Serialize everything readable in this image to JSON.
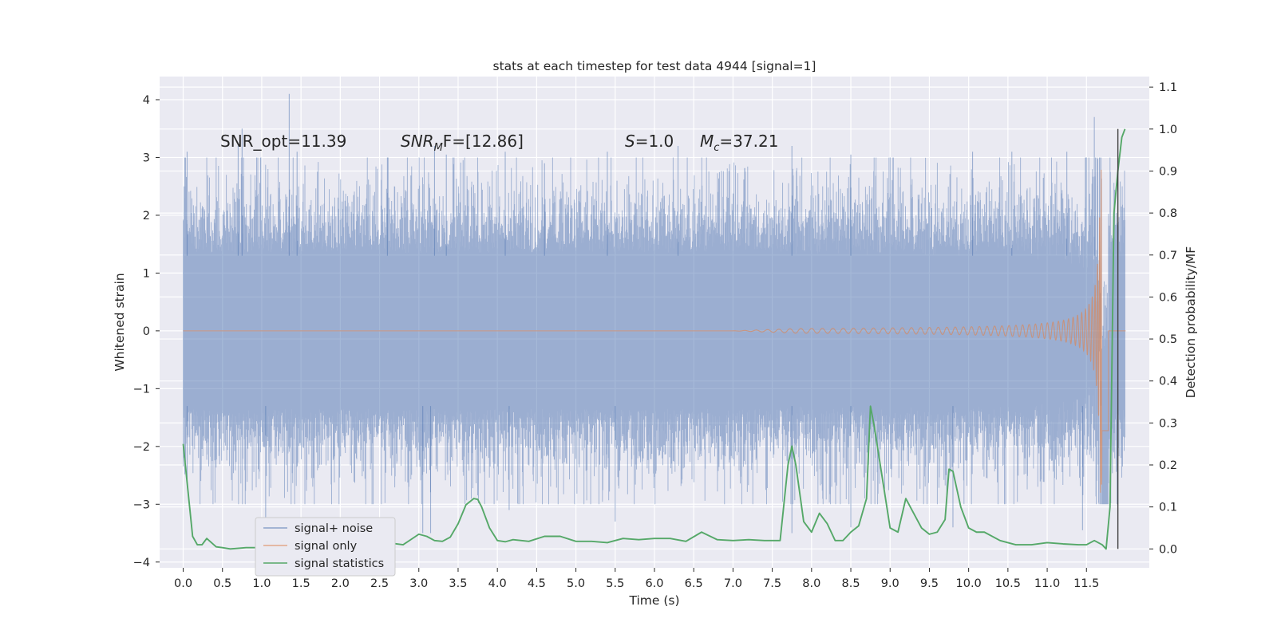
{
  "chart_data": {
    "type": "line",
    "title": "stats at each timestep for test data 4944 [signal=1]",
    "xlabel": "Time (s)",
    "ylabel": "Whitened strain",
    "y2label": "Detection probability/MF",
    "xlim": [
      -0.3,
      12.3
    ],
    "ylim": [
      -4.1,
      4.4
    ],
    "y2lim": [
      -0.045,
      1.125
    ],
    "x_ticks": [
      0.0,
      0.5,
      1.0,
      1.5,
      2.0,
      2.5,
      3.0,
      3.5,
      4.0,
      4.5,
      5.0,
      5.5,
      6.0,
      6.5,
      7.0,
      7.5,
      8.0,
      8.5,
      9.0,
      9.5,
      10.0,
      10.5,
      11.0,
      11.5
    ],
    "x_tick_labels": [
      "0.0",
      "0.5",
      "1.0",
      "1.5",
      "2.0",
      "2.5",
      "3.0",
      "3.5",
      "4.0",
      "4.5",
      "5.0",
      "5.5",
      "6.0",
      "6.5",
      "7.0",
      "7.5",
      "8.0",
      "8.5",
      "9.0",
      "9.5",
      "10.0",
      "10.5",
      "11.0",
      "11.5"
    ],
    "y_ticks": [
      4,
      3,
      2,
      1,
      0,
      -1,
      -2,
      -3,
      -4
    ],
    "y_tick_labels": [
      "4",
      "3",
      "2",
      "1",
      "0",
      "−1",
      "−2",
      "−3",
      "−4"
    ],
    "y2_ticks": [
      1.1,
      1.0,
      0.9,
      0.8,
      0.7,
      0.6,
      0.5,
      0.4,
      0.3,
      0.2,
      0.1,
      0.0
    ],
    "y2_tick_labels": [
      "1.1",
      "1.0",
      "0.9",
      "0.8",
      "0.7",
      "0.6",
      "0.5",
      "0.4",
      "0.3",
      "0.2",
      "0.1",
      "0.0"
    ],
    "grid": true,
    "legend_placement": "lower-left",
    "colors": {
      "background": "#eaeaf2",
      "grid": "#ffffff",
      "noise": "#4c72b0",
      "signal": "#dd8452",
      "stats": "#55a868",
      "marker": "#404040"
    },
    "series": [
      {
        "name": "signal+ noise",
        "axis": "left",
        "kind": "whitened strain noise band",
        "x_range": [
          0.0,
          11.99
        ],
        "typical_range": [
          -1.4,
          1.4
        ],
        "peaks_upper": [
          [
            0.05,
            3.1
          ],
          [
            0.7,
            3.2
          ],
          [
            0.75,
            3.5
          ],
          [
            1.35,
            4.1
          ],
          [
            1.45,
            3.1
          ],
          [
            2.6,
            3.0
          ],
          [
            3.2,
            3.2
          ],
          [
            3.35,
            3.05
          ],
          [
            4.1,
            3.1
          ],
          [
            4.6,
            2.9
          ],
          [
            5.4,
            3.1
          ],
          [
            6.3,
            3.2
          ],
          [
            7.75,
            3.2
          ],
          [
            8.5,
            3.05
          ],
          [
            10.05,
            3.1
          ],
          [
            10.55,
            3.1
          ],
          [
            11.25,
            3.1
          ],
          [
            11.6,
            3.7
          ]
        ],
        "peaks_lower": [
          [
            0.05,
            -2.6
          ],
          [
            1.05,
            -3.3
          ],
          [
            3.05,
            -3.5
          ],
          [
            3.15,
            -3.5
          ],
          [
            4.15,
            -3.1
          ],
          [
            5.5,
            -3.3
          ],
          [
            7.75,
            -3.5
          ],
          [
            8.5,
            -3.4
          ],
          [
            9.8,
            -3.4
          ],
          [
            11.45,
            -3.45
          ]
        ]
      },
      {
        "name": "signal only",
        "axis": "left",
        "kind": "chirp",
        "onset": 7.0,
        "merger_time": 11.7,
        "peak_amplitude": 2.8,
        "min_amplitude": -2.6
      },
      {
        "name": "signal statistics",
        "axis": "right",
        "x": [
          0.0,
          0.06,
          0.12,
          0.18,
          0.24,
          0.3,
          0.36,
          0.42,
          0.5,
          0.6,
          0.8,
          1.0,
          1.2,
          1.4,
          1.5,
          1.6,
          1.8,
          2.0,
          2.2,
          2.4,
          2.6,
          2.8,
          3.0,
          3.1,
          3.2,
          3.3,
          3.4,
          3.5,
          3.6,
          3.7,
          3.75,
          3.8,
          3.9,
          4.0,
          4.1,
          4.2,
          4.4,
          4.6,
          4.8,
          5.0,
          5.2,
          5.4,
          5.6,
          5.8,
          6.0,
          6.2,
          6.4,
          6.6,
          6.8,
          7.0,
          7.2,
          7.4,
          7.6,
          7.7,
          7.75,
          7.8,
          7.9,
          8.0,
          8.1,
          8.2,
          8.3,
          8.4,
          8.5,
          8.6,
          8.7,
          8.75,
          8.8,
          8.9,
          9.0,
          9.1,
          9.2,
          9.3,
          9.4,
          9.5,
          9.6,
          9.7,
          9.75,
          9.8,
          9.9,
          10.0,
          10.1,
          10.2,
          10.4,
          10.6,
          10.8,
          11.0,
          11.2,
          11.4,
          11.5,
          11.6,
          11.7,
          11.75,
          11.8,
          11.85,
          11.9,
          11.95,
          11.99
        ],
        "values": [
          0.25,
          0.14,
          0.03,
          0.01,
          0.01,
          0.025,
          0.015,
          0.005,
          0.003,
          0.0,
          0.003,
          0.003,
          0.005,
          0.003,
          0.01,
          0.005,
          0.01,
          0.007,
          0.01,
          0.01,
          0.015,
          0.01,
          0.035,
          0.03,
          0.02,
          0.018,
          0.028,
          0.06,
          0.105,
          0.12,
          0.118,
          0.1,
          0.05,
          0.02,
          0.017,
          0.022,
          0.018,
          0.03,
          0.03,
          0.018,
          0.018,
          0.015,
          0.025,
          0.022,
          0.025,
          0.025,
          0.018,
          0.04,
          0.022,
          0.02,
          0.022,
          0.02,
          0.02,
          0.2,
          0.245,
          0.2,
          0.065,
          0.04,
          0.085,
          0.06,
          0.02,
          0.02,
          0.04,
          0.055,
          0.12,
          0.34,
          0.29,
          0.17,
          0.05,
          0.04,
          0.12,
          0.085,
          0.05,
          0.035,
          0.04,
          0.07,
          0.19,
          0.185,
          0.1,
          0.05,
          0.04,
          0.04,
          0.02,
          0.01,
          0.01,
          0.015,
          0.012,
          0.01,
          0.01,
          0.02,
          0.01,
          0.0,
          0.1,
          0.8,
          0.9,
          0.98,
          1.0
        ]
      }
    ],
    "marker_line_x": 11.9,
    "annotations": {
      "snr_opt": "SNR_opt=11.39",
      "snr_mf_base": "SNR",
      "snr_mf_sub": "M",
      "snr_mf_rest": "F=[12.86]",
      "s_label": "S",
      "s_value": "=1.0",
      "mc_base": "M",
      "mc_sub": "c",
      "mc_value": "=37.21"
    }
  }
}
